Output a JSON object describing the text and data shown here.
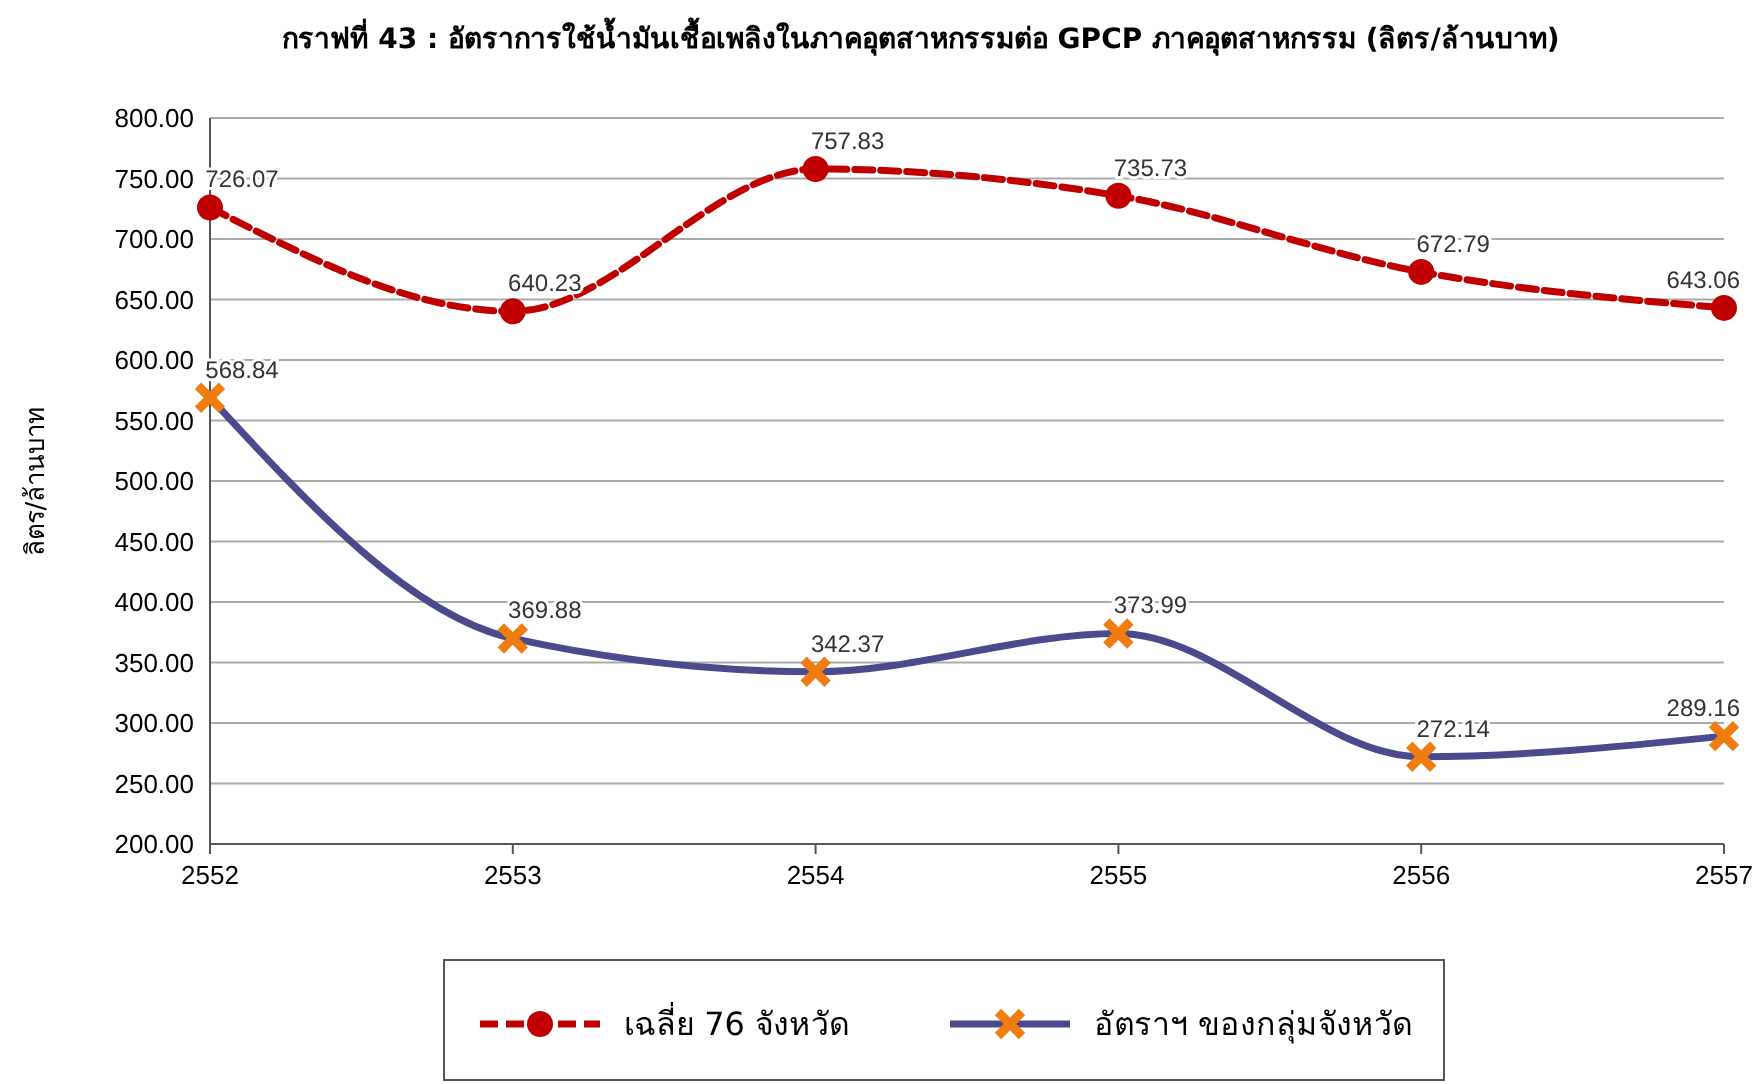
{
  "chart_data": {
    "type": "line",
    "title": "กราฟที่ 43 : อัตราการใช้น้ำมันเชื้อเพลิงในภาคอุตสาหกรรมต่อ GPCP ภาคอุตสาหกรรม (ลิตร/ล้านบาท)",
    "ylabel": "ลิตร/ล้านบาท",
    "x": [
      2552,
      2553,
      2554,
      2555,
      2556,
      2557
    ],
    "xlim": [
      2552,
      2557
    ],
    "xticks": [
      2552,
      2553,
      2554,
      2555,
      2556,
      2557
    ],
    "ylim": [
      200,
      800
    ],
    "yticks": [
      {
        "value": 200,
        "label": "200.00"
      },
      {
        "value": 250,
        "label": "250.00"
      },
      {
        "value": 300,
        "label": "300.00"
      },
      {
        "value": 350,
        "label": "350.00"
      },
      {
        "value": 400,
        "label": "400.00"
      },
      {
        "value": 450,
        "label": "450.00"
      },
      {
        "value": 500,
        "label": "500.00"
      },
      {
        "value": 550,
        "label": "550.00"
      },
      {
        "value": 600,
        "label": "600.00"
      },
      {
        "value": 650,
        "label": "650.00"
      },
      {
        "value": 700,
        "label": "700.00"
      },
      {
        "value": 750,
        "label": "750.00"
      },
      {
        "value": 800,
        "label": "800.00"
      }
    ],
    "series": [
      {
        "name": "เฉลี่ย 76 จังหวัด",
        "color": "#c00000",
        "values": [
          726.07,
          640.23,
          757.83,
          735.73,
          672.79,
          643.06
        ],
        "marker": "circle",
        "line_style": "dashed"
      },
      {
        "name": "อัตราฯ ของกลุ่มจังหวัด",
        "color": "#4b4a8c",
        "values": [
          568.84,
          369.88,
          342.37,
          373.99,
          272.14,
          289.16
        ],
        "marker": "cross",
        "line_style": "solid",
        "colors": [
          "#f07d10",
          "#f07d10",
          "#f07d10",
          "#f07d10",
          "#f07d10",
          "#f07d10"
        ]
      }
    ],
    "data_labels": true,
    "grid": "y",
    "legend": "bottom"
  }
}
